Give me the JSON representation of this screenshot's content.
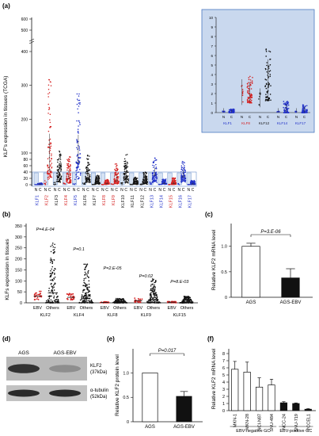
{
  "panel_labels": [
    "(a)",
    "(b)",
    "(c)",
    "(d)",
    "(e)",
    "(f)"
  ],
  "colors": {
    "black": "#111111",
    "red": "#d42020",
    "blue": "#2030c8",
    "inset_bg": "#c9d8ee",
    "normal_bg": "#d6e2f3",
    "band_border": "#4a78c0"
  },
  "chart_data": [
    {
      "panel": "(a)",
      "type": "scatter",
      "ylabel": "KLF's expression in tissues (TCGA)",
      "y_ticks_lower": [
        "0",
        "20",
        "40",
        "60",
        "80",
        "100",
        "200",
        "300",
        "400"
      ],
      "y_ticks_upper": [
        "500",
        "600"
      ],
      "group_letters": [
        "N",
        "C"
      ],
      "categories": [
        "KLF1",
        "KLF2",
        "KLF3",
        "KLF4",
        "KLF5",
        "KLF6",
        "KLF7",
        "KLF8",
        "KLF9",
        "KLF10",
        "KLF11",
        "KLF12",
        "KLF13",
        "KLF14",
        "KLF15",
        "KLF16",
        "KLF17"
      ],
      "category_colors": [
        "blue",
        "red",
        "black",
        "red",
        "blue",
        "black",
        "black",
        "red",
        "red",
        "black",
        "black",
        "black",
        "blue",
        "blue",
        "red",
        "blue",
        "blue"
      ],
      "cancer_median": [
        1,
        45,
        28,
        18,
        70,
        22,
        6,
        3,
        12,
        25,
        5,
        8,
        30,
        4,
        3,
        25,
        2
      ],
      "cancer_spread": [
        5,
        320,
        90,
        80,
        240,
        80,
        25,
        15,
        60,
        80,
        20,
        35,
        70,
        15,
        20,
        60,
        12
      ],
      "inset": {
        "y_ticks": [
          "0",
          "1",
          "2",
          "3",
          "4",
          "5",
          "6",
          "7",
          "8",
          "9",
          "10"
        ],
        "ylim": [
          0,
          10
        ],
        "categories": [
          "KLF1",
          "KLF8",
          "KLF12",
          "KLF14",
          "KLF17"
        ],
        "category_colors": [
          "blue",
          "red",
          "black",
          "blue",
          "blue"
        ],
        "group_letters": [
          "N",
          "C"
        ],
        "normal_median": [
          0.1,
          2.0,
          1.4,
          0.1,
          0.1
        ],
        "cancer_median": [
          0.1,
          2.0,
          3.2,
          0.3,
          0.2
        ],
        "cancer_spread": [
          0.3,
          2.0,
          4.0,
          1.0,
          0.7
        ]
      }
    },
    {
      "panel": "(b)",
      "type": "scatter",
      "ylabel": "KLFs expression in tissues",
      "y_ticks": [
        "0",
        "50",
        "100",
        "150",
        "200",
        "250",
        "300",
        "350"
      ],
      "ylim": [
        0,
        350
      ],
      "categories": [
        "KLF2",
        "KLF4",
        "KLF8",
        "KLF9",
        "KLF15"
      ],
      "groups": [
        "EBV",
        "Others"
      ],
      "p_values": [
        "P=4.E-04",
        "P=0.1",
        "P=2.E-05",
        "P=0.02",
        "P=8.E-03"
      ],
      "ebv_mean": [
        30,
        25,
        2,
        10,
        3
      ],
      "others_mean": [
        45,
        30,
        5,
        15,
        4
      ],
      "ebv_spread": [
        40,
        30,
        5,
        20,
        6
      ],
      "others_spread": [
        280,
        180,
        20,
        110,
        30
      ]
    },
    {
      "panel": "(c)",
      "type": "bar",
      "ylabel": "Relative KLF2 mRNA level",
      "categories": [
        "AGS",
        "AGS-EBV"
      ],
      "values": [
        1.0,
        0.38
      ],
      "errors": [
        0.06,
        0.18
      ],
      "y_ticks": [
        "0",
        "0.5",
        "1.0"
      ],
      "ylim": [
        0,
        1.4
      ],
      "p_value": "P=3.E-06"
    },
    {
      "panel": "(e)",
      "type": "bar",
      "ylabel": "Relative KLF2 protein level",
      "categories": [
        "AGS",
        "AGS-EBV"
      ],
      "values": [
        1.0,
        0.52
      ],
      "errors": [
        0.0,
        0.1
      ],
      "y_ticks": [
        "0",
        "0.5",
        "1.0"
      ],
      "ylim": [
        0,
        1.3
      ],
      "p_value": "P=0.017"
    },
    {
      "panel": "(f)",
      "type": "bar",
      "ylabel": "Relative KLF2 mRNA level",
      "categories": [
        "MKN-1",
        "MKN-28",
        "NCI-N87",
        "SNU-484",
        "NCC-24",
        "SNU-719",
        "YCCEL1"
      ],
      "values": [
        5.8,
        5.4,
        3.3,
        3.6,
        1.1,
        1.0,
        0.2
      ],
      "errors": [
        1.1,
        1.4,
        1.3,
        0.8,
        0.15,
        0.08,
        0.08
      ],
      "bar_fill": [
        "white",
        "white",
        "white",
        "white",
        "black",
        "black",
        "black"
      ],
      "y_ticks": [
        "0",
        "1",
        "2",
        "3",
        "4",
        "5",
        "6",
        "7",
        "8"
      ],
      "ylim": [
        0,
        8
      ],
      "group_labels": [
        "EBV-negative GC",
        "EBV-positive GC"
      ]
    }
  ],
  "blot": {
    "panel": "(d)",
    "lanes": [
      "AGS",
      "AGS-EBV"
    ],
    "rows": [
      {
        "label": "KLF2",
        "size": "(37kDa)",
        "intensity": [
          0.9,
          0.35
        ]
      },
      {
        "label": "α-tubulin",
        "size": "(52kDa)",
        "intensity": [
          0.95,
          0.95
        ]
      }
    ]
  }
}
